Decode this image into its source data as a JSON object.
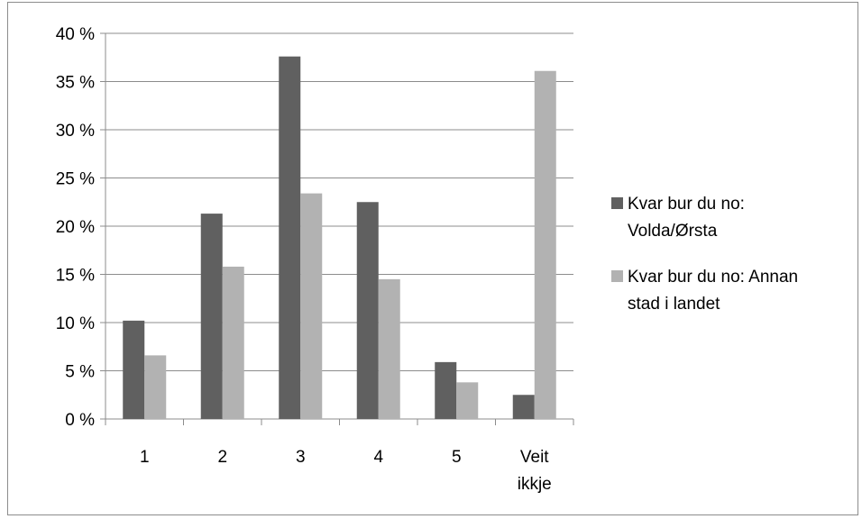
{
  "chart_data": {
    "type": "bar",
    "categories": [
      "1",
      "2",
      "3",
      "4",
      "5",
      "Veit ikkje"
    ],
    "series": [
      {
        "name": "Kvar bur du no: Volda/Ørsta",
        "color": "#606060",
        "values": [
          10.2,
          21.3,
          37.6,
          22.5,
          5.9,
          2.5
        ]
      },
      {
        "name": "Kvar bur du no: Annan stad i landet",
        "color": "#b2b2b2",
        "values": [
          6.6,
          15.8,
          23.4,
          14.5,
          3.8,
          36.1
        ]
      }
    ],
    "y_tick_labels": [
      "0 %",
      "5 %",
      "10 %",
      "15 %",
      "20 %",
      "25 %",
      "30 %",
      "35 %",
      "40 %"
    ],
    "ylim": [
      0,
      40
    ],
    "y_step": 5,
    "grid": true,
    "legend_position": "right",
    "title": "",
    "xlabel": "",
    "ylabel": ""
  }
}
